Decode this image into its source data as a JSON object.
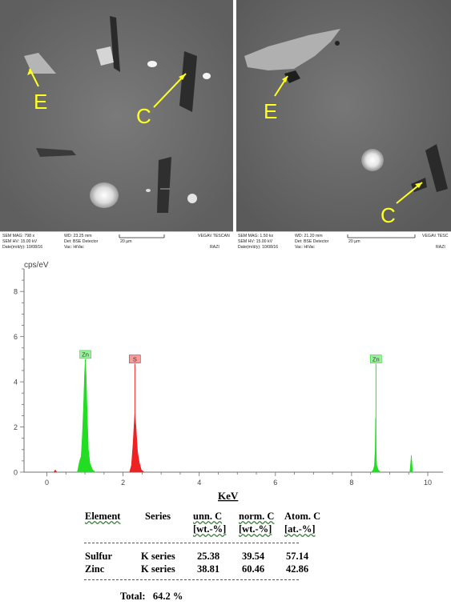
{
  "sem_left": {
    "markers": [
      "E",
      "C"
    ],
    "info": {
      "mag": "SEM MAG: 798 x",
      "hv": "SEM HV: 15.00 kV",
      "date": "Date(m/d/y): 10/08/16",
      "wd": "WD: 23.25 mm",
      "det": "Det: BSE Detector",
      "vac": "Vac: HiVac",
      "scale": "20 µm",
      "brand": "VEGA\\\\ TESCAN",
      "lab": "RAZI"
    }
  },
  "sem_right": {
    "markers": [
      "E",
      "C"
    ],
    "info": {
      "mag": "SEM MAG: 1.50 kx",
      "hv": "SEM HV: 15.00 kV",
      "date": "Date(m/d/y): 10/08/16",
      "wd": "WD: 21.20 mm",
      "det": "Det: BSE Detector",
      "vac": "Vac: HiVac",
      "scale": "20 µm",
      "brand": "VEGA\\\\ TESC",
      "lab": "RAZI"
    }
  },
  "chart_data": {
    "type": "line",
    "ylabel": "cps/eV",
    "xlabel": "KeV",
    "xlim": [
      -0.6,
      10.4
    ],
    "ylim": [
      0,
      9
    ],
    "xticks": [
      "0",
      "2",
      "4",
      "6",
      "8",
      "10"
    ],
    "yticks": [
      "0",
      "2",
      "4",
      "6",
      "8"
    ],
    "grid": false,
    "colors": {
      "zn": "#22dd22",
      "s": "#ee2222",
      "axis": "#6f6f6f"
    },
    "peaks": [
      {
        "label": "Zn",
        "x": 1.01,
        "y": 5.0,
        "color": "#22dd22"
      },
      {
        "label": "S",
        "x": 2.31,
        "y": 4.8,
        "color": "#ee2222"
      },
      {
        "label": "Zn",
        "x": 8.64,
        "y": 4.8,
        "color": "#22dd22"
      }
    ],
    "series": [
      {
        "color": "#22dd22",
        "points": [
          [
            0.8,
            0
          ],
          [
            0.86,
            0.5
          ],
          [
            0.9,
            0.7
          ],
          [
            0.93,
            1.6
          ],
          [
            0.96,
            2.8
          ],
          [
            0.99,
            4.4
          ],
          [
            1.01,
            5.0
          ],
          [
            1.03,
            4.3
          ],
          [
            1.06,
            2.5
          ],
          [
            1.09,
            1.0
          ],
          [
            1.13,
            0.4
          ],
          [
            1.2,
            0.1
          ],
          [
            1.28,
            0
          ]
        ]
      },
      {
        "color": "#ee2222",
        "points": [
          [
            2.17,
            0
          ],
          [
            2.22,
            0.3
          ],
          [
            2.26,
            1.2
          ],
          [
            2.29,
            2.1
          ],
          [
            2.31,
            2.6
          ],
          [
            2.34,
            2.0
          ],
          [
            2.38,
            0.9
          ],
          [
            2.43,
            0.4
          ],
          [
            2.48,
            0.1
          ],
          [
            2.55,
            0
          ]
        ]
      },
      {
        "color": "#ee2222",
        "points": [
          [
            0.18,
            0
          ],
          [
            0.22,
            0.1
          ],
          [
            0.26,
            0
          ]
        ]
      },
      {
        "color": "#22dd22",
        "points": [
          [
            8.52,
            0
          ],
          [
            8.57,
            0.1
          ],
          [
            8.6,
            0.3
          ],
          [
            8.62,
            1.0
          ],
          [
            8.63,
            2.4
          ],
          [
            8.64,
            1.0
          ],
          [
            8.66,
            0.3
          ],
          [
            8.7,
            0.1
          ],
          [
            8.76,
            0
          ]
        ]
      },
      {
        "color": "#22dd22",
        "points": [
          [
            9.53,
            0
          ],
          [
            9.57,
            0.75
          ],
          [
            9.6,
            0
          ]
        ]
      }
    ]
  },
  "table": {
    "headers": [
      "Element",
      "Series",
      "unn. C",
      "norm. C",
      "Atom. C"
    ],
    "units": [
      "[wt.-%]",
      "[wt.-%]",
      "[at.-%]"
    ],
    "rows": [
      [
        "Sulfur",
        "K series",
        "25.38",
        "39.54",
        "57.14"
      ],
      [
        "Zinc",
        "K series",
        "38.81",
        "60.46",
        "42.86"
      ]
    ],
    "total": "Total:   64.2 %"
  }
}
